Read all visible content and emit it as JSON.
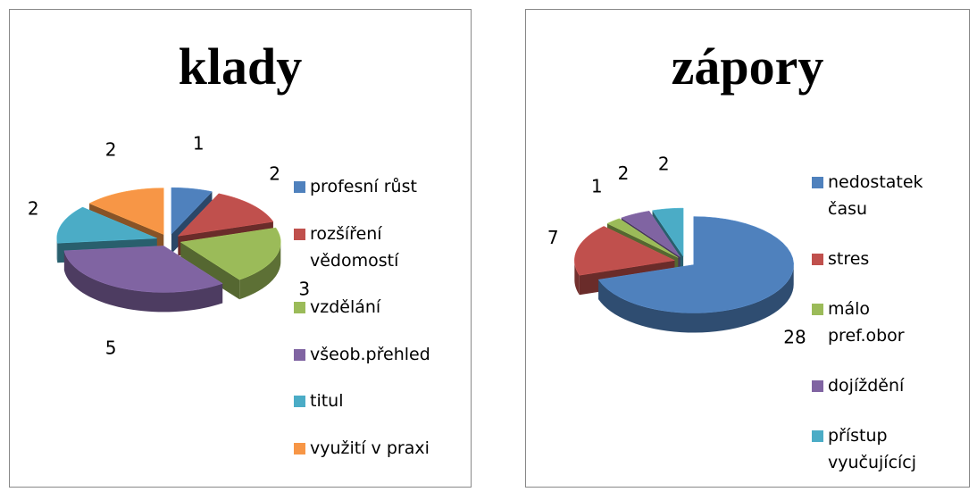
{
  "chart_data": [
    {
      "type": "pie",
      "title": "klady",
      "categories": [
        "profesní růst",
        "rozšíření vědomostí",
        "vzdělání",
        "všeob.přehled",
        "titul",
        "využití v praxi"
      ],
      "values": [
        1,
        2,
        3,
        5,
        2,
        2
      ],
      "colors": [
        "#4f81bd",
        "#c0504d",
        "#9bbb59",
        "#8064a2",
        "#4bacc6",
        "#f79646"
      ],
      "legend": "right"
    },
    {
      "type": "pie",
      "title": "zápory",
      "categories": [
        "nedostatek času",
        "stres",
        "málo pref.obor",
        "dojíždění",
        "přístup vyučujícícj"
      ],
      "values": [
        28,
        7,
        1,
        2,
        2
      ],
      "colors": [
        "#4f81bd",
        "#c0504d",
        "#9bbb59",
        "#8064a2",
        "#4bacc6"
      ],
      "legend": "right"
    }
  ]
}
